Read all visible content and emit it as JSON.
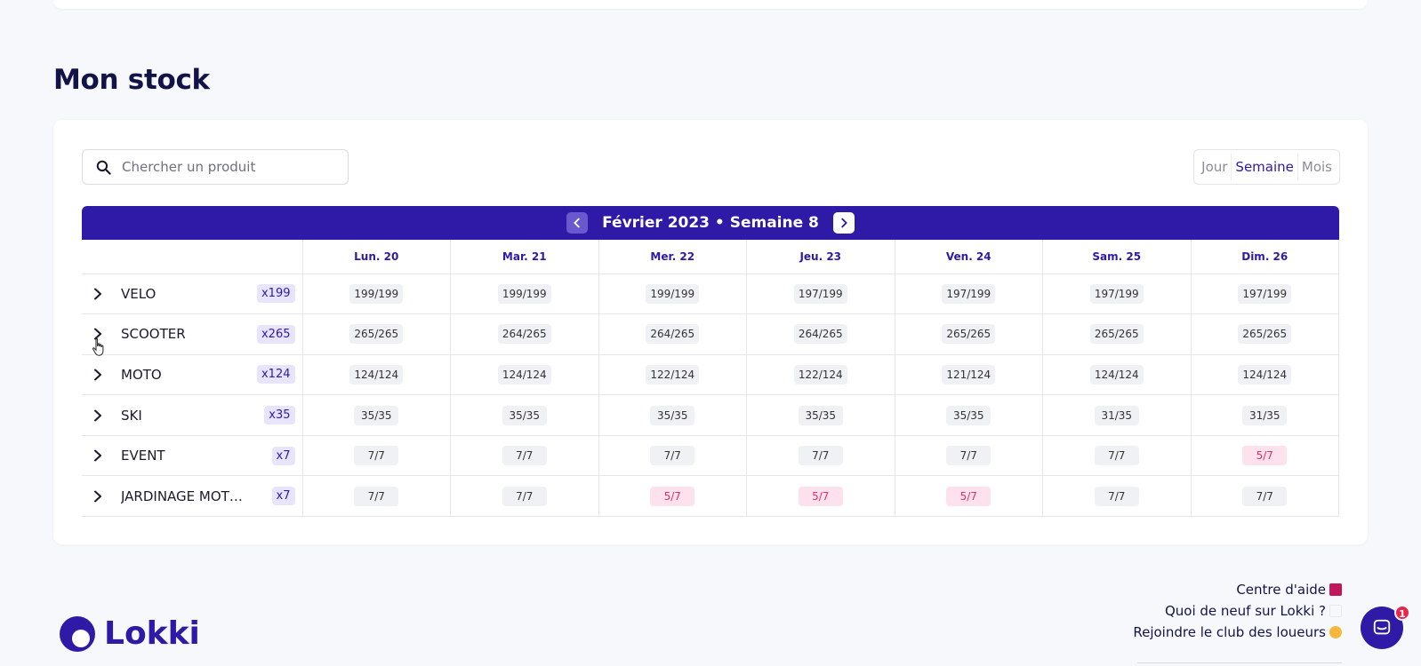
{
  "section_title": "Mon stock",
  "search": {
    "placeholder": "Chercher un produit"
  },
  "view_toggle": {
    "day": "Jour",
    "week": "Semaine",
    "month": "Mois",
    "active": "Semaine"
  },
  "calendar": {
    "title": "Février 2023 • Semaine 8",
    "days": [
      "Lun. 20",
      "Mar. 21",
      "Mer. 22",
      "Jeu. 23",
      "Ven. 24",
      "Sam. 25",
      "Dim. 26"
    ]
  },
  "products": [
    {
      "name": "VELO",
      "qty": "x199",
      "stock": [
        "199/199",
        "199/199",
        "199/199",
        "197/199",
        "197/199",
        "197/199",
        "197/199"
      ]
    },
    {
      "name": "SCOOTER",
      "qty": "x265",
      "stock": [
        "265/265",
        "264/265",
        "264/265",
        "264/265",
        "265/265",
        "265/265",
        "265/265"
      ]
    },
    {
      "name": "MOTO",
      "qty": "x124",
      "stock": [
        "124/124",
        "124/124",
        "122/124",
        "122/124",
        "121/124",
        "124/124",
        "124/124"
      ]
    },
    {
      "name": "SKI",
      "qty": "x35",
      "stock": [
        "35/35",
        "35/35",
        "35/35",
        "35/35",
        "35/35",
        "31/35",
        "31/35"
      ]
    },
    {
      "name": "EVENT",
      "qty": "x7",
      "stock": [
        "7/7",
        "7/7",
        "7/7",
        "7/7",
        "7/7",
        "7/7",
        "5/7"
      ]
    },
    {
      "name": "JARDINAGE MOTO…",
      "qty": "x7",
      "stock": [
        "7/7",
        "7/7",
        "5/7",
        "5/7",
        "5/7",
        "7/7",
        "7/7"
      ]
    }
  ],
  "low_stock_color": "#e0306a",
  "accent_color": "#2e1aa6",
  "brand": {
    "name": "Lokki"
  },
  "footer": {
    "help": "Centre d'aide",
    "news": "Quoi de neuf sur Lokki ?",
    "club": "Rejoindre le club des loueurs"
  },
  "chat": {
    "badge": "1",
    "icon": "chat-icon"
  }
}
